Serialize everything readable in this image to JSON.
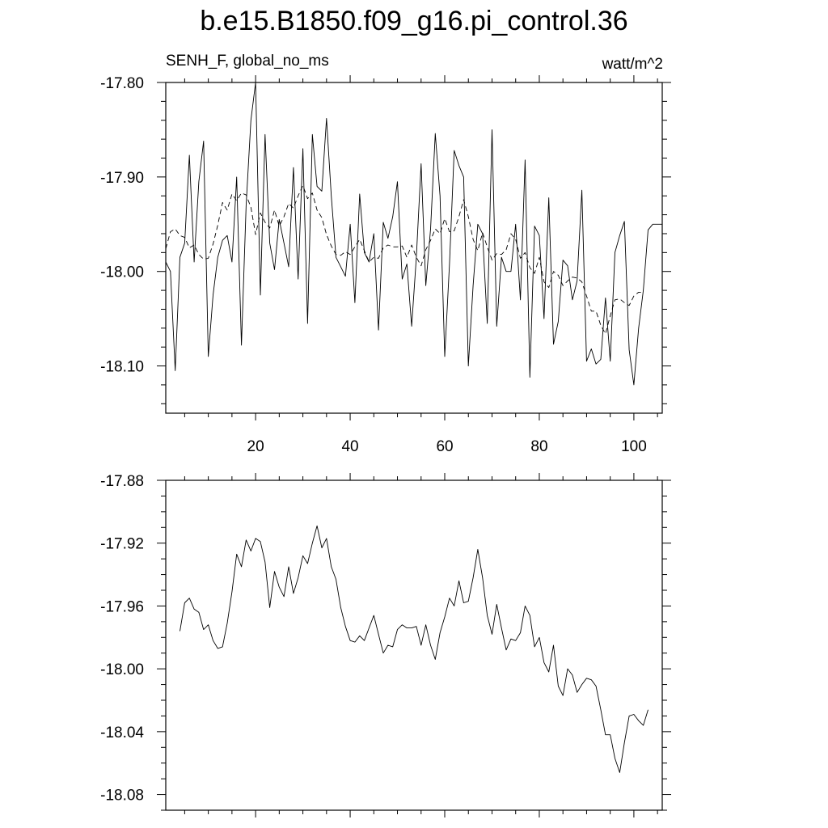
{
  "title": "b.e15.B1850.f09_g16.pi_control.36",
  "subtitle_left": "SENH_F, global_no_ms",
  "subtitle_right": "watt/m^2",
  "chart_data": [
    {
      "type": "line",
      "title": "b.e15.B1850.f09_g16.pi_control.36",
      "subtitle_left": "SENH_F, global_no_ms",
      "subtitle_right": "watt/m^2",
      "xlabel": "",
      "ylabel": "",
      "xlim": [
        1,
        106
      ],
      "ylim": [
        -18.15,
        -17.8
      ],
      "xticks": [
        20,
        40,
        60,
        80,
        100
      ],
      "xtick_labels": [
        "20",
        "40",
        "60",
        "80",
        "100"
      ],
      "yticks": [
        -18.1,
        -18.0,
        -17.9,
        -17.8
      ],
      "ytick_labels": [
        "-18.10",
        "-18.00",
        "-17.90",
        "-17.80"
      ],
      "grid": false,
      "series": [
        {
          "style": "solid",
          "x": [
            1,
            2,
            3,
            4,
            5,
            6,
            7,
            8,
            9,
            10,
            11,
            12,
            13,
            14,
            15,
            16,
            17,
            18,
            19,
            20,
            21,
            22,
            23,
            24,
            25,
            26,
            27,
            28,
            29,
            30,
            31,
            32,
            33,
            34,
            35,
            36,
            37,
            38,
            39,
            40,
            41,
            42,
            43,
            44,
            45,
            46,
            47,
            48,
            49,
            50,
            51,
            52,
            53,
            54,
            55,
            56,
            57,
            58,
            59,
            60,
            61,
            62,
            63,
            64,
            65,
            66,
            67,
            68,
            69,
            70,
            71,
            72,
            73,
            74,
            75,
            76,
            77,
            78,
            79,
            80,
            81,
            82,
            83,
            84,
            85,
            86,
            87,
            88,
            89,
            90,
            91,
            92,
            93,
            94,
            95,
            96,
            97,
            98,
            99,
            100,
            101,
            102,
            103,
            104,
            105,
            106
          ],
          "values": [
            -17.99,
            -18.0,
            -18.105,
            -17.985,
            -17.97,
            -17.877,
            -17.99,
            -17.905,
            -17.862,
            -18.09,
            -18.025,
            -17.985,
            -17.967,
            -17.962,
            -17.99,
            -17.9,
            -18.078,
            -17.93,
            -17.84,
            -17.8,
            -18.025,
            -17.855,
            -17.97,
            -17.998,
            -17.945,
            -17.97,
            -17.995,
            -17.89,
            -18.008,
            -17.87,
            -18.055,
            -17.855,
            -17.91,
            -17.915,
            -17.838,
            -17.92,
            -17.985,
            -17.995,
            -18.005,
            -17.95,
            -18.033,
            -17.918,
            -17.98,
            -17.99,
            -17.96,
            -18.062,
            -17.948,
            -17.965,
            -17.942,
            -17.905,
            -18.008,
            -17.992,
            -18.058,
            -17.985,
            -17.886,
            -18.015,
            -17.955,
            -17.854,
            -17.92,
            -18.09,
            -17.992,
            -17.872,
            -17.888,
            -17.9,
            -18.1,
            -18.015,
            -17.95,
            -17.96,
            -18.055,
            -17.85,
            -18.058,
            -17.985,
            -18.0,
            -18.0,
            -17.95,
            -18.03,
            -17.882,
            -18.112,
            -17.952,
            -17.962,
            -18.05,
            -17.922,
            -18.077,
            -18.053,
            -17.988,
            -17.994,
            -18.03,
            -18.01,
            -17.914,
            -18.095,
            -18.082,
            -18.098,
            -18.093,
            -18.028,
            -18.095,
            -17.98,
            -17.962,
            -17.947,
            -18.083,
            -18.12,
            -18.06,
            -18.02,
            -17.956,
            -17.95,
            -17.95,
            -17.95
          ]
        },
        {
          "style": "dashed",
          "x": [
            1,
            2,
            3,
            4,
            5,
            6,
            7,
            8,
            9,
            10,
            11,
            12,
            13,
            14,
            15,
            16,
            17,
            18,
            19,
            20,
            21,
            22,
            23,
            24,
            25,
            26,
            27,
            28,
            29,
            30,
            31,
            32,
            33,
            34,
            35,
            36,
            37,
            38,
            39,
            40,
            41,
            42,
            43,
            44,
            45,
            46,
            47,
            48,
            49,
            50,
            51,
            52,
            53,
            54,
            55,
            56,
            57,
            58,
            59,
            60,
            61,
            62,
            63,
            64,
            65,
            66,
            67,
            68,
            69,
            70,
            71,
            72,
            73,
            74,
            75,
            76,
            77,
            78,
            79,
            80,
            81,
            82,
            83,
            84,
            85,
            86,
            87,
            88,
            89,
            90,
            91,
            92,
            93,
            94,
            95,
            96,
            97,
            98,
            99,
            100,
            101,
            102
          ],
          "values": [
            -17.976,
            -17.958,
            -17.955,
            -17.962,
            -17.964,
            -17.975,
            -17.972,
            -17.982,
            -17.987,
            -17.986,
            -17.971,
            -17.951,
            -17.927,
            -17.935,
            -17.918,
            -17.925,
            -17.917,
            -17.919,
            -17.932,
            -17.961,
            -17.938,
            -17.948,
            -17.954,
            -17.935,
            -17.952,
            -17.942,
            -17.928,
            -17.933,
            -17.92,
            -17.909,
            -17.923,
            -17.917,
            -17.935,
            -17.943,
            -17.961,
            -17.973,
            -17.982,
            -17.983,
            -17.979,
            -17.982,
            -17.974,
            -17.966,
            -17.978,
            -17.99,
            -17.985,
            -17.986,
            -17.975,
            -17.972,
            -17.974,
            -17.974,
            -17.973,
            -17.985,
            -17.972,
            -17.985,
            -17.994,
            -17.977,
            -17.967,
            -17.955,
            -17.96,
            -17.944,
            -17.958,
            -17.957,
            -17.942,
            -17.924,
            -17.942,
            -17.966,
            -17.978,
            -17.959,
            -17.974,
            -17.988,
            -17.981,
            -17.982,
            -17.977,
            -17.96,
            -17.966,
            -17.986,
            -17.98,
            -17.996,
            -18.002,
            -17.985,
            -18.011,
            -18.017,
            -18.0,
            -18.004,
            -18.015,
            -18.01,
            -18.006,
            -18.007,
            -18.011,
            -18.026,
            -18.042,
            -18.042,
            -18.057,
            -18.066,
            -18.047,
            -18.03,
            -18.029,
            -18.033,
            -18.036,
            -18.026,
            -18.022,
            -18.022
          ]
        }
      ]
    },
    {
      "type": "line",
      "xlabel": "",
      "ylabel": "",
      "xlim": [
        1,
        106
      ],
      "ylim": [
        -18.09,
        -17.88
      ],
      "xticks": [
        20,
        40,
        60,
        80,
        100
      ],
      "xtick_labels": [],
      "yticks": [
        -18.08,
        -18.04,
        -18.0,
        -17.96,
        -17.92,
        -17.88
      ],
      "ytick_labels": [
        "-18.08",
        "-18.04",
        "-18.00",
        "-17.96",
        "-17.92",
        "-17.88"
      ],
      "grid": false,
      "series": [
        {
          "style": "solid",
          "x": [
            4,
            5,
            6,
            7,
            8,
            9,
            10,
            11,
            12,
            13,
            14,
            15,
            16,
            17,
            18,
            19,
            20,
            21,
            22,
            23,
            24,
            25,
            26,
            27,
            28,
            29,
            30,
            31,
            32,
            33,
            34,
            35,
            36,
            37,
            38,
            39,
            40,
            41,
            42,
            43,
            44,
            45,
            46,
            47,
            48,
            49,
            50,
            51,
            52,
            53,
            54,
            55,
            56,
            57,
            58,
            59,
            60,
            61,
            62,
            63,
            64,
            65,
            66,
            67,
            68,
            69,
            70,
            71,
            72,
            73,
            74,
            75,
            76,
            77,
            78,
            79,
            80,
            81,
            82,
            83,
            84,
            85,
            86,
            87,
            88,
            89,
            90,
            91,
            92,
            93,
            94,
            95,
            96,
            97,
            98,
            99,
            100,
            101,
            102,
            103
          ],
          "values": [
            -17.976,
            -17.958,
            -17.955,
            -17.962,
            -17.964,
            -17.975,
            -17.972,
            -17.982,
            -17.987,
            -17.986,
            -17.971,
            -17.951,
            -17.927,
            -17.935,
            -17.918,
            -17.925,
            -17.917,
            -17.919,
            -17.932,
            -17.961,
            -17.938,
            -17.948,
            -17.954,
            -17.935,
            -17.952,
            -17.942,
            -17.928,
            -17.933,
            -17.92,
            -17.909,
            -17.923,
            -17.917,
            -17.935,
            -17.943,
            -17.961,
            -17.973,
            -17.982,
            -17.983,
            -17.979,
            -17.982,
            -17.974,
            -17.966,
            -17.978,
            -17.99,
            -17.985,
            -17.986,
            -17.975,
            -17.972,
            -17.974,
            -17.974,
            -17.973,
            -17.985,
            -17.972,
            -17.985,
            -17.994,
            -17.977,
            -17.967,
            -17.955,
            -17.96,
            -17.944,
            -17.958,
            -17.957,
            -17.942,
            -17.924,
            -17.942,
            -17.966,
            -17.978,
            -17.959,
            -17.974,
            -17.988,
            -17.981,
            -17.982,
            -17.977,
            -17.96,
            -17.966,
            -17.986,
            -17.98,
            -17.996,
            -18.002,
            -17.985,
            -18.011,
            -18.017,
            -18.0,
            -18.004,
            -18.015,
            -18.01,
            -18.006,
            -18.007,
            -18.011,
            -18.026,
            -18.042,
            -18.042,
            -18.057,
            -18.066,
            -18.047,
            -18.03,
            -18.029,
            -18.033,
            -18.036,
            -18.026
          ]
        }
      ]
    }
  ]
}
